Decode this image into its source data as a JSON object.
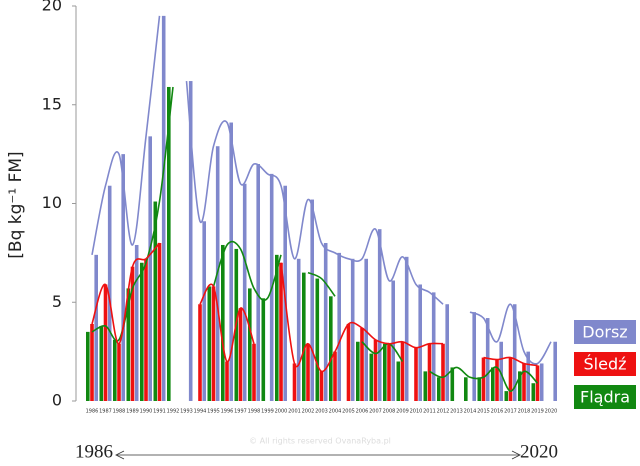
{
  "chart_data": {
    "type": "bar",
    "y_label": "[Bq kg⁻¹ FM]",
    "watermark": "© All rights reserved OvanaRyba.pl",
    "range_start": "1986",
    "range_end": "2020",
    "categories": [
      "1986",
      "1987",
      "1988",
      "1989",
      "1990",
      "1991",
      "1992",
      "1993",
      "1994",
      "1995",
      "1996",
      "1997",
      "1998",
      "1999",
      "2000",
      "2001",
      "2002",
      "2003",
      "2004",
      "2005",
      "2006",
      "2007",
      "2008",
      "2009",
      "2010",
      "2011",
      "2012",
      "2013",
      "2014",
      "2015",
      "2016",
      "2017",
      "2018",
      "2019",
      "2020"
    ],
    "ylim": [
      0,
      20
    ],
    "yticks": [
      0,
      5,
      10,
      15,
      20
    ],
    "series": [
      {
        "name": "Flądra",
        "color": "#118811",
        "values": [
          3.5,
          3.8,
          3.1,
          5.7,
          7.0,
          10.1,
          15.9,
          null,
          null,
          5.8,
          7.9,
          7.7,
          5.7,
          5.2,
          7.4,
          null,
          6.5,
          6.2,
          5.3,
          null,
          3.0,
          2.4,
          2.9,
          2.0,
          null,
          1.5,
          1.2,
          1.7,
          1.2,
          1.2,
          1.7,
          0.5,
          1.5,
          0.9,
          null
        ]
      },
      {
        "name": "Śledź",
        "color": "#ee1111",
        "values": [
          3.9,
          5.9,
          2.9,
          6.8,
          7.2,
          8.0,
          null,
          null,
          4.9,
          5.8,
          2.0,
          4.7,
          2.9,
          null,
          7.0,
          1.9,
          2.9,
          1.5,
          2.5,
          3.9,
          3.7,
          3.1,
          2.9,
          3.0,
          2.7,
          2.9,
          2.9,
          null,
          null,
          2.2,
          2.1,
          2.2,
          1.9,
          1.8,
          null
        ]
      },
      {
        "name": "Dorsz",
        "color": "#8088cc",
        "values": [
          7.4,
          10.9,
          12.5,
          7.9,
          13.4,
          19.5,
          null,
          16.2,
          9.1,
          12.9,
          14.1,
          11.0,
          12.0,
          11.5,
          10.9,
          7.2,
          10.2,
          8.0,
          7.5,
          7.2,
          7.2,
          8.7,
          6.1,
          7.3,
          5.9,
          5.5,
          4.9,
          null,
          4.5,
          4.2,
          3.0,
          4.9,
          2.5,
          1.9,
          3.0
        ]
      }
    ]
  }
}
